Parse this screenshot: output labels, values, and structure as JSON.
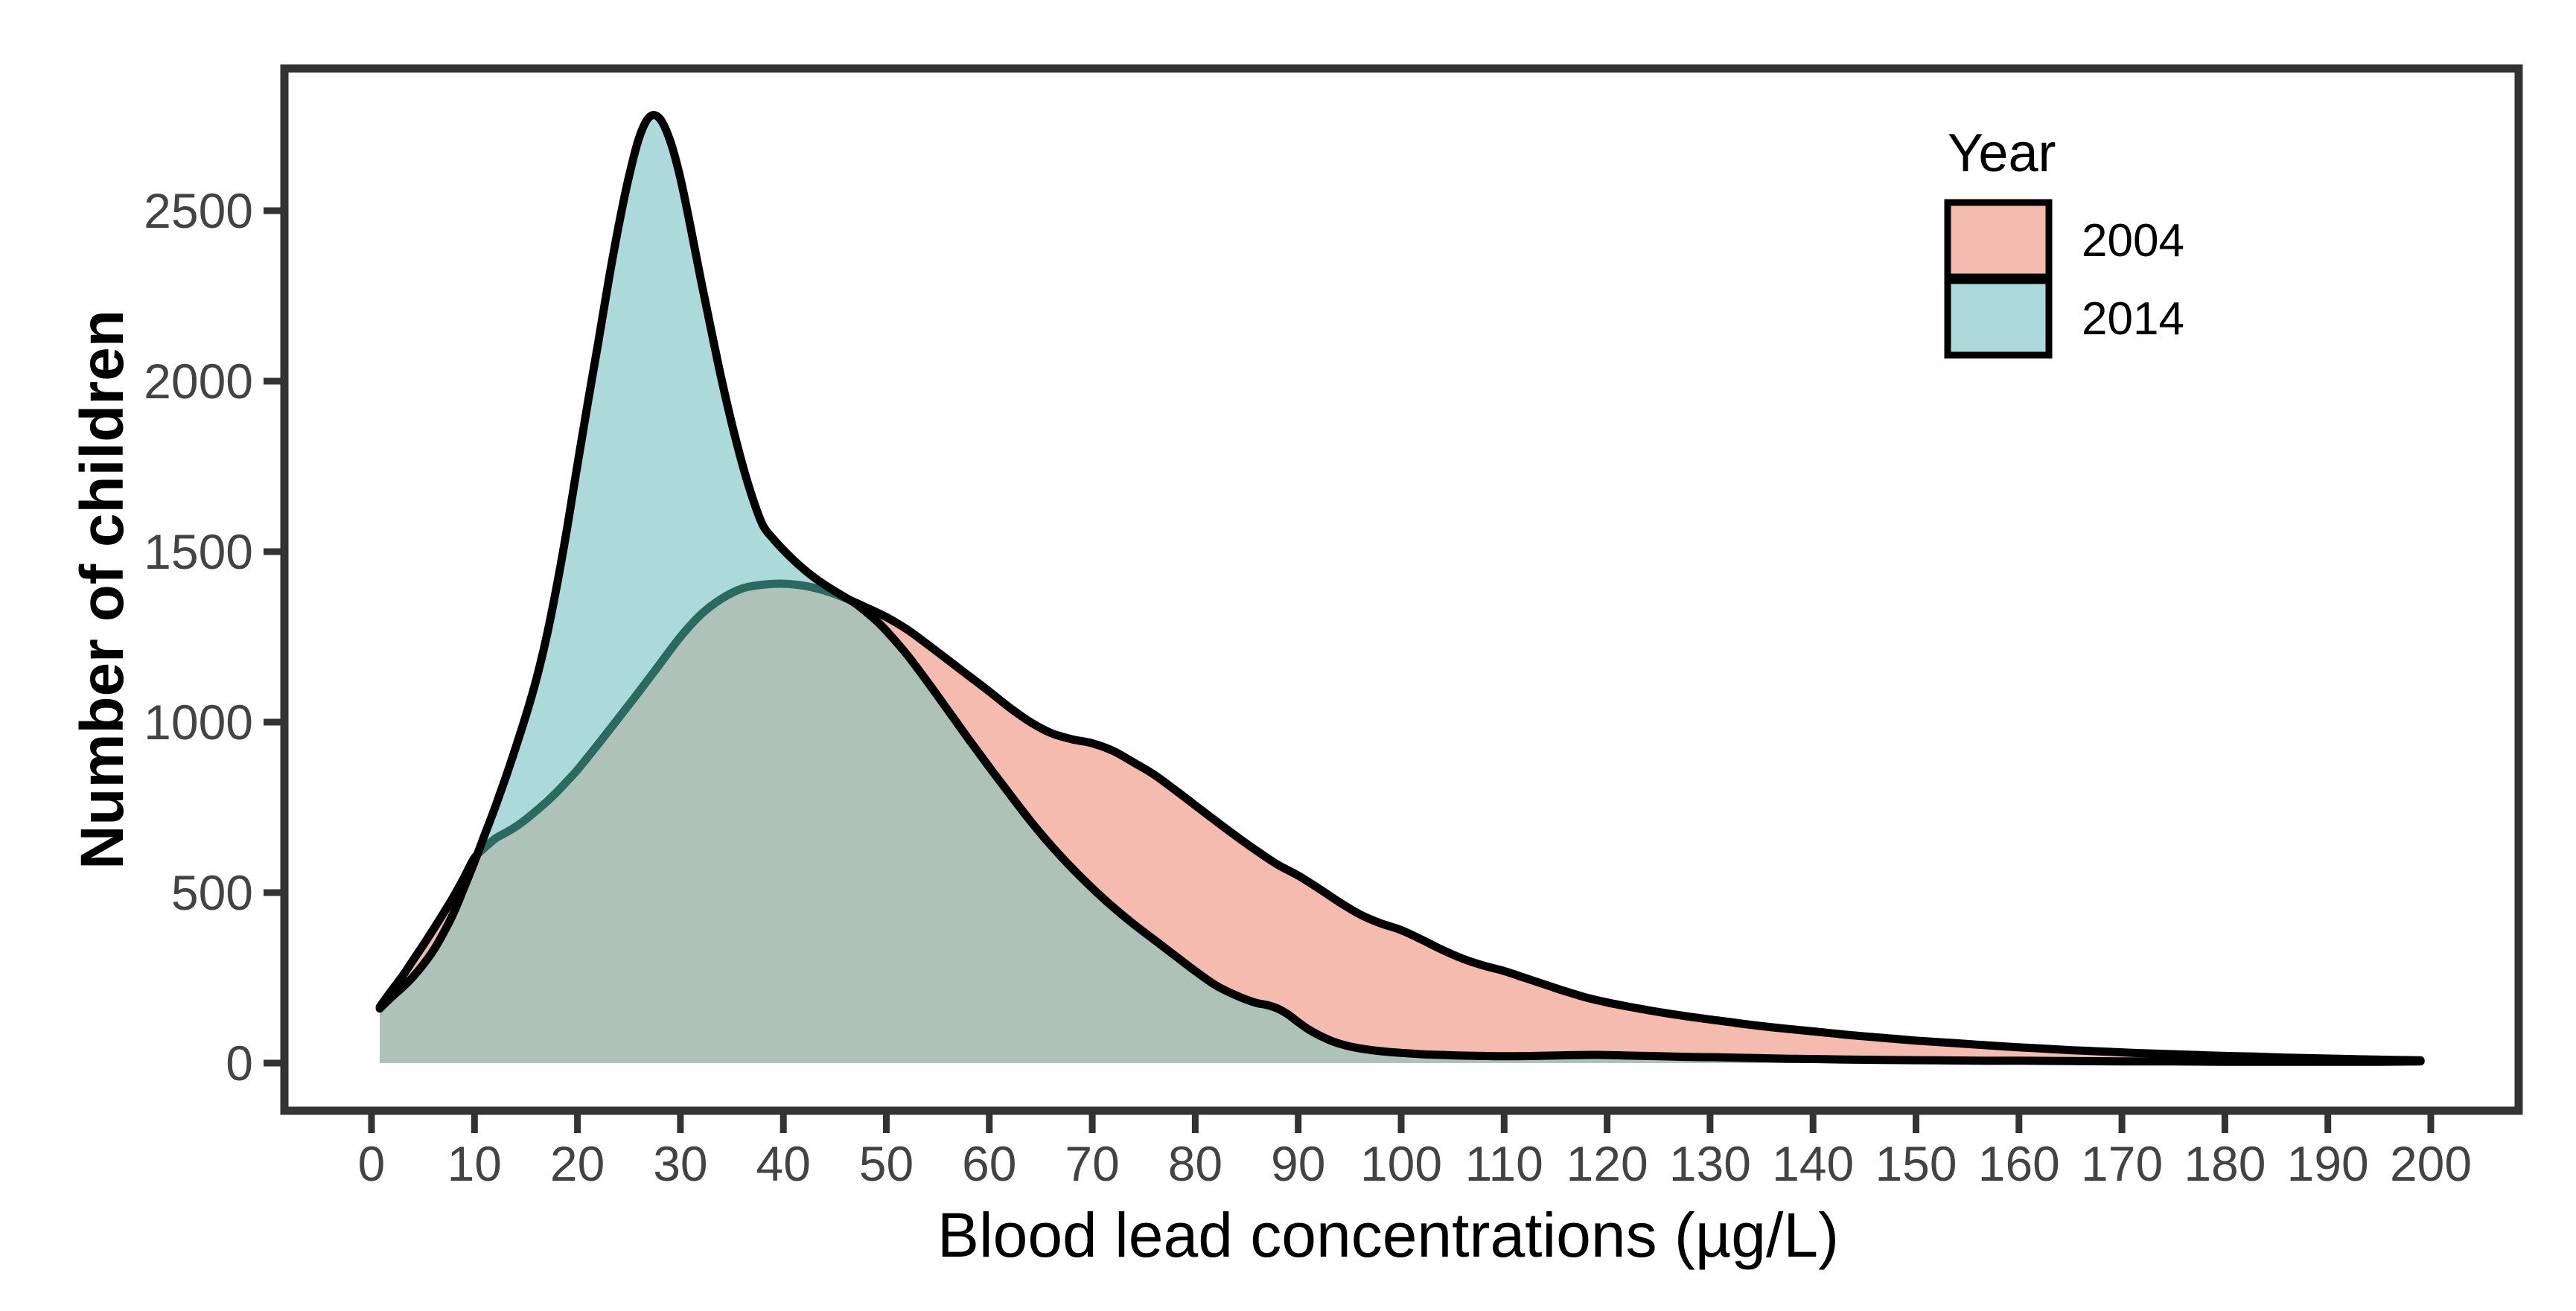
{
  "figure": {
    "background": "#ffffff"
  },
  "chart_data": {
    "type": "area",
    "subtype": "overlapping-density",
    "title": "",
    "xlabel": "Blood lead concentrations (µg/L)",
    "ylabel": "Number of children",
    "x_ticks": [
      0,
      10,
      20,
      30,
      40,
      50,
      60,
      70,
      80,
      90,
      100,
      110,
      120,
      130,
      140,
      150,
      160,
      170,
      180,
      190,
      200
    ],
    "y_ticks": [
      0,
      500,
      1000,
      1500,
      2000,
      2500
    ],
    "xlim": [
      0,
      200
    ],
    "ylim": [
      0,
      2780
    ],
    "grid": false,
    "legend": {
      "title": "Year",
      "position": "top-right",
      "entries": [
        {
          "label": "2004",
          "fill": "#F5BBAF"
        },
        {
          "label": "2014",
          "fill": "#ACDADA"
        }
      ]
    },
    "styles": {
      "outline_color": "#000000",
      "outline_width": 11,
      "fill_2004": "#F5BBAF",
      "fill_2014": "#ACDADA",
      "overlap_fill": "#AFC2B9",
      "covered_outline_color": "#2A6A60",
      "axis_color": "#333333",
      "tick_label_color": "#434343"
    },
    "crossings_x": [
      10.35,
      46.6
    ],
    "series": [
      {
        "name": "2004",
        "fill": "#F5BBAF",
        "points": [
          [
            0.8,
            165
          ],
          [
            2,
            215
          ],
          [
            3,
            255
          ],
          [
            4,
            300
          ],
          [
            5,
            345
          ],
          [
            6,
            392
          ],
          [
            7,
            440
          ],
          [
            8,
            490
          ],
          [
            9,
            545
          ],
          [
            10,
            602
          ],
          [
            11,
            632
          ],
          [
            12,
            658
          ],
          [
            13,
            675
          ],
          [
            14,
            693
          ],
          [
            15,
            715
          ],
          [
            16,
            740
          ],
          [
            17,
            766
          ],
          [
            18,
            795
          ],
          [
            19,
            827
          ],
          [
            20,
            860
          ],
          [
            22,
            935
          ],
          [
            24,
            1012
          ],
          [
            26,
            1090
          ],
          [
            28,
            1170
          ],
          [
            30,
            1250
          ],
          [
            32,
            1316
          ],
          [
            34,
            1362
          ],
          [
            36,
            1392
          ],
          [
            38,
            1403
          ],
          [
            40,
            1406
          ],
          [
            42,
            1400
          ],
          [
            44,
            1386
          ],
          [
            46,
            1364
          ],
          [
            48,
            1337
          ],
          [
            50,
            1308
          ],
          [
            52,
            1272
          ],
          [
            54,
            1228
          ],
          [
            56,
            1182
          ],
          [
            58,
            1136
          ],
          [
            60,
            1090
          ],
          [
            62,
            1042
          ],
          [
            64,
            1000
          ],
          [
            66,
            968
          ],
          [
            68,
            950
          ],
          [
            70,
            938
          ],
          [
            72,
            916
          ],
          [
            74,
            882
          ],
          [
            76,
            846
          ],
          [
            78,
            802
          ],
          [
            80,
            756
          ],
          [
            82,
            710
          ],
          [
            84,
            665
          ],
          [
            86,
            622
          ],
          [
            88,
            582
          ],
          [
            90,
            550
          ],
          [
            92,
            512
          ],
          [
            94,
            472
          ],
          [
            96,
            436
          ],
          [
            98,
            410
          ],
          [
            100,
            390
          ],
          [
            102,
            362
          ],
          [
            104,
            332
          ],
          [
            106,
            306
          ],
          [
            108,
            286
          ],
          [
            110,
            270
          ],
          [
            112,
            250
          ],
          [
            114,
            230
          ],
          [
            116,
            210
          ],
          [
            118,
            192
          ],
          [
            120,
            178
          ],
          [
            122,
            166
          ],
          [
            124,
            155
          ],
          [
            126,
            145
          ],
          [
            128,
            136
          ],
          [
            130,
            128
          ],
          [
            132,
            120
          ],
          [
            134,
            112
          ],
          [
            136,
            105
          ],
          [
            138,
            99
          ],
          [
            140,
            93
          ],
          [
            142,
            87
          ],
          [
            144,
            81
          ],
          [
            146,
            76
          ],
          [
            148,
            71
          ],
          [
            150,
            66
          ],
          [
            153,
            60
          ],
          [
            156,
            54
          ],
          [
            159,
            48
          ],
          [
            162,
            43
          ],
          [
            165,
            38
          ],
          [
            168,
            34
          ],
          [
            171,
            30
          ],
          [
            174,
            27
          ],
          [
            177,
            24
          ],
          [
            180,
            21
          ],
          [
            183,
            19
          ],
          [
            186,
            16
          ],
          [
            189,
            14
          ],
          [
            192,
            12
          ],
          [
            195,
            10
          ],
          [
            197,
            9
          ],
          [
            199,
            8
          ]
        ]
      },
      {
        "name": "2014",
        "fill": "#ACDADA",
        "points": [
          [
            0.8,
            160
          ],
          [
            2,
            195
          ],
          [
            3,
            222
          ],
          [
            4,
            252
          ],
          [
            5,
            288
          ],
          [
            6,
            330
          ],
          [
            7,
            382
          ],
          [
            8,
            442
          ],
          [
            9,
            515
          ],
          [
            10,
            590
          ],
          [
            11,
            670
          ],
          [
            12,
            750
          ],
          [
            13,
            835
          ],
          [
            14,
            925
          ],
          [
            15,
            1020
          ],
          [
            16,
            1125
          ],
          [
            17,
            1250
          ],
          [
            18,
            1400
          ],
          [
            19,
            1570
          ],
          [
            20,
            1755
          ],
          [
            21,
            1935
          ],
          [
            22,
            2110
          ],
          [
            23,
            2290
          ],
          [
            24,
            2455
          ],
          [
            25,
            2600
          ],
          [
            26,
            2715
          ],
          [
            27,
            2775
          ],
          [
            28,
            2770
          ],
          [
            29,
            2705
          ],
          [
            30,
            2595
          ],
          [
            31,
            2450
          ],
          [
            32,
            2295
          ],
          [
            33,
            2148
          ],
          [
            34,
            2005
          ],
          [
            35,
            1875
          ],
          [
            36,
            1758
          ],
          [
            37,
            1658
          ],
          [
            38,
            1578
          ],
          [
            39,
            1538
          ],
          [
            40,
            1505
          ],
          [
            41,
            1475
          ],
          [
            42,
            1448
          ],
          [
            43,
            1424
          ],
          [
            44,
            1403
          ],
          [
            45,
            1384
          ],
          [
            46,
            1366
          ],
          [
            47,
            1348
          ],
          [
            48,
            1324
          ],
          [
            49,
            1298
          ],
          [
            50,
            1268
          ],
          [
            52,
            1198
          ],
          [
            54,
            1118
          ],
          [
            56,
            1034
          ],
          [
            58,
            950
          ],
          [
            60,
            868
          ],
          [
            62,
            788
          ],
          [
            64,
            710
          ],
          [
            66,
            638
          ],
          [
            68,
            573
          ],
          [
            70,
            513
          ],
          [
            72,
            458
          ],
          [
            74,
            408
          ],
          [
            76,
            362
          ],
          [
            78,
            316
          ],
          [
            80,
            270
          ],
          [
            82,
            228
          ],
          [
            84,
            198
          ],
          [
            85,
            186
          ],
          [
            86,
            176
          ],
          [
            87,
            170
          ],
          [
            88,
            160
          ],
          [
            89,
            143
          ],
          [
            90,
            120
          ],
          [
            91,
            99
          ],
          [
            92,
            82
          ],
          [
            93,
            68
          ],
          [
            94,
            57
          ],
          [
            95,
            49
          ],
          [
            96,
            43
          ],
          [
            98,
            35
          ],
          [
            100,
            30
          ],
          [
            102,
            26
          ],
          [
            104,
            24
          ],
          [
            106,
            22
          ],
          [
            108,
            21
          ],
          [
            110,
            20
          ],
          [
            113,
            21
          ],
          [
            116,
            23
          ],
          [
            119,
            24
          ],
          [
            122,
            22
          ],
          [
            125,
            20
          ],
          [
            128,
            18
          ],
          [
            131,
            17
          ],
          [
            134,
            15
          ],
          [
            137,
            13
          ],
          [
            140,
            12
          ],
          [
            144,
            10
          ],
          [
            148,
            9
          ],
          [
            152,
            8
          ],
          [
            156,
            7
          ],
          [
            160,
            7
          ],
          [
            165,
            6
          ],
          [
            170,
            5
          ],
          [
            175,
            5
          ],
          [
            180,
            4
          ],
          [
            185,
            4
          ],
          [
            190,
            4
          ],
          [
            195,
            4
          ],
          [
            199,
            5
          ]
        ]
      }
    ]
  }
}
